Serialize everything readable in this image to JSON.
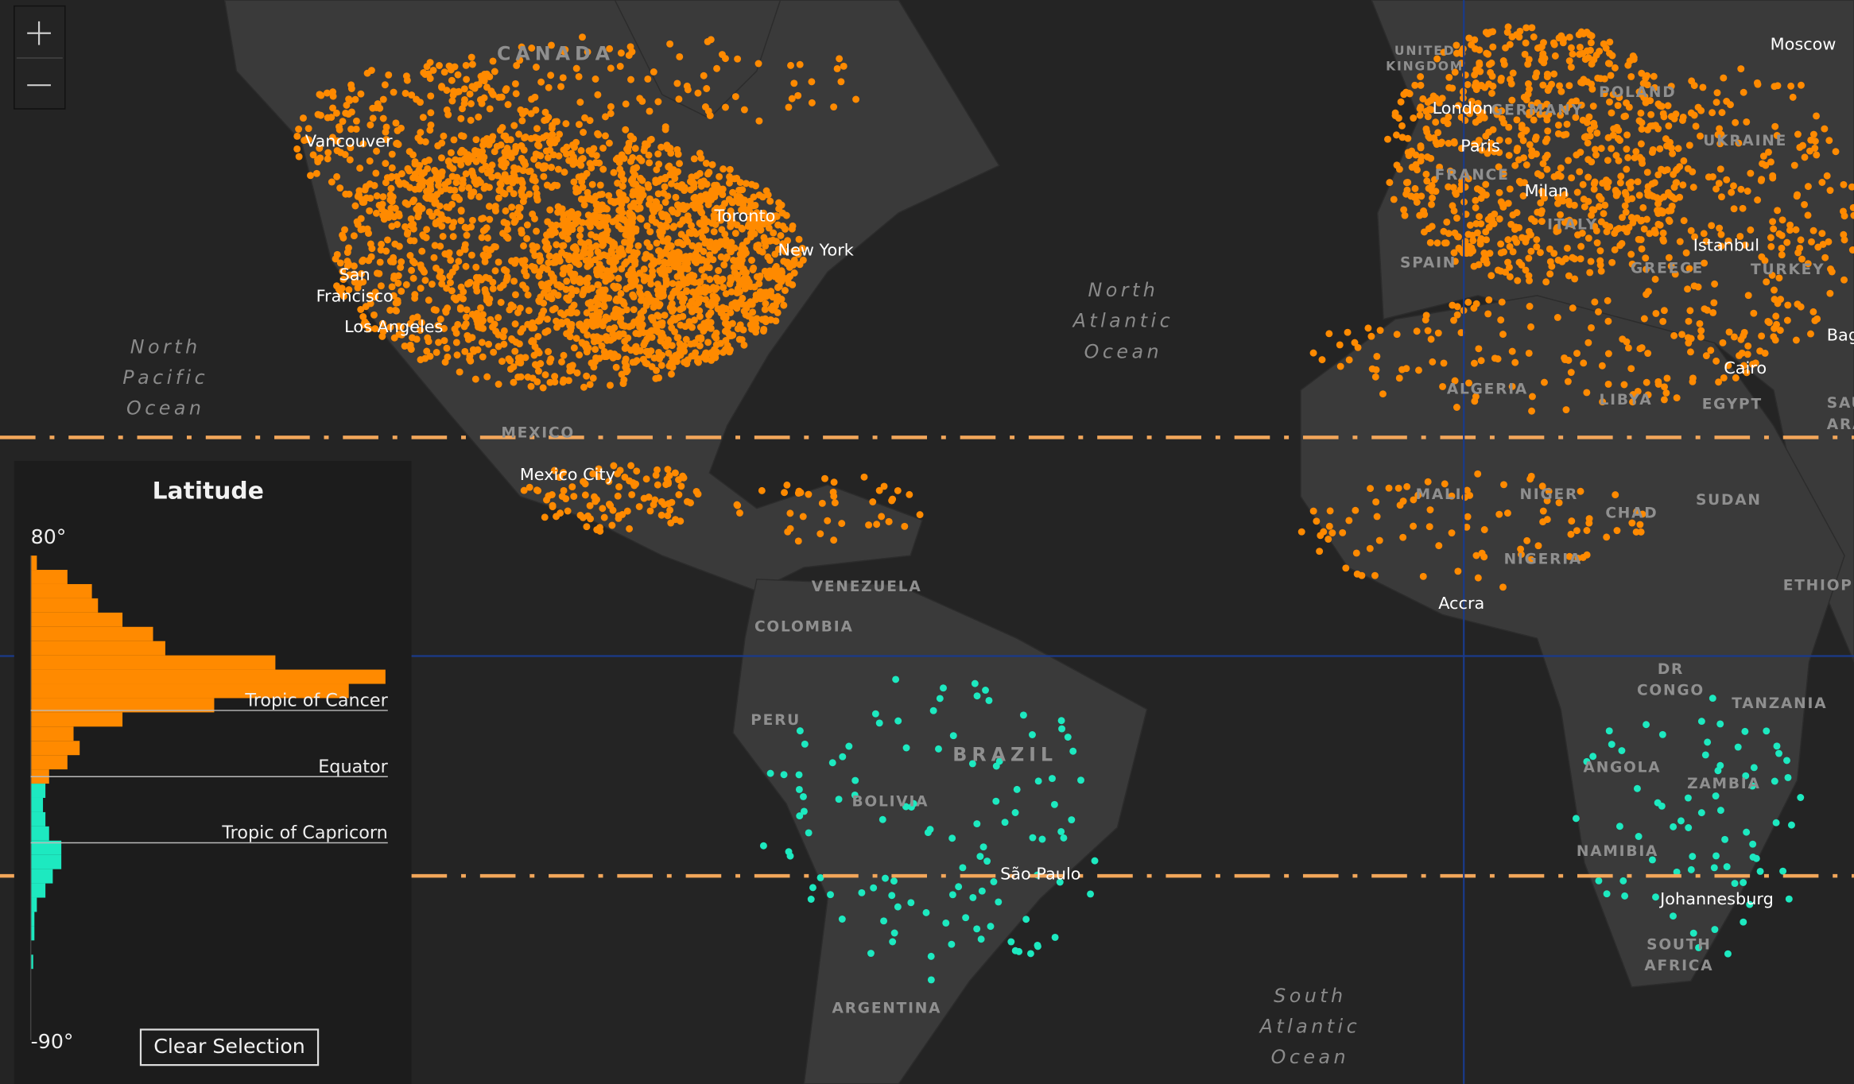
{
  "map_labels": [
    {
      "lines": [
        "CANADA"
      ],
      "kind": "country"
    },
    {
      "lines": [
        "Vancouver"
      ],
      "kind": "city"
    },
    {
      "lines": [
        "San",
        "Francisco"
      ],
      "kind": "city"
    },
    {
      "lines": [
        "Los Angeles"
      ],
      "kind": "city"
    },
    {
      "lines": [
        "Toronto"
      ],
      "kind": "city"
    },
    {
      "lines": [
        "New York"
      ],
      "kind": "city"
    },
    {
      "lines": [
        "MEXICO"
      ],
      "kind": "country"
    },
    {
      "lines": [
        "Mexico City"
      ],
      "kind": "city"
    },
    {
      "lines": [
        "North",
        "Pacific",
        "Ocean"
      ],
      "kind": "ocean"
    },
    {
      "lines": [
        "North",
        "Atlantic",
        "Ocean"
      ],
      "kind": "ocean"
    },
    {
      "lines": [
        "VENEZUELA"
      ],
      "kind": "country"
    },
    {
      "lines": [
        "COLOMBIA"
      ],
      "kind": "country"
    },
    {
      "lines": [
        "PERU"
      ],
      "kind": "country"
    },
    {
      "lines": [
        "BRAZIL"
      ],
      "kind": "country"
    },
    {
      "lines": [
        "BOLIVIA"
      ],
      "kind": "country"
    },
    {
      "lines": [
        "ARGENTINA"
      ],
      "kind": "country"
    },
    {
      "lines": [
        "São Paulo"
      ],
      "kind": "city"
    },
    {
      "lines": [
        "South",
        "Atlantic",
        "Ocean"
      ],
      "kind": "ocean"
    },
    {
      "lines": [
        "UNITED",
        "KINGDOM"
      ],
      "kind": "country"
    },
    {
      "lines": [
        "London"
      ],
      "kind": "city"
    },
    {
      "lines": [
        "Paris"
      ],
      "kind": "city"
    },
    {
      "lines": [
        "FRANCE"
      ],
      "kind": "country"
    },
    {
      "lines": [
        "GERMANY"
      ],
      "kind": "country"
    },
    {
      "lines": [
        "POLAND"
      ],
      "kind": "country"
    },
    {
      "lines": [
        "UKRAINE"
      ],
      "kind": "country"
    },
    {
      "lines": [
        "Moscow"
      ],
      "kind": "city"
    },
    {
      "lines": [
        "Milan"
      ],
      "kind": "city"
    },
    {
      "lines": [
        "ITALY"
      ],
      "kind": "country"
    },
    {
      "lines": [
        "SPAIN"
      ],
      "kind": "country"
    },
    {
      "lines": [
        "GREECE"
      ],
      "kind": "country"
    },
    {
      "lines": [
        "Istanbul"
      ],
      "kind": "city"
    },
    {
      "lines": [
        "TURKEY"
      ],
      "kind": "country"
    },
    {
      "lines": [
        "Baghdad"
      ],
      "kind": "city"
    },
    {
      "lines": [
        "ALGERIA"
      ],
      "kind": "country"
    },
    {
      "lines": [
        "LIBYA"
      ],
      "kind": "country"
    },
    {
      "lines": [
        "EGYPT"
      ],
      "kind": "country"
    },
    {
      "lines": [
        "Cairo"
      ],
      "kind": "city"
    },
    {
      "lines": [
        "SAUDI",
        "ARABIA"
      ],
      "kind": "country"
    },
    {
      "lines": [
        "MALI"
      ],
      "kind": "country"
    },
    {
      "lines": [
        "NIGER"
      ],
      "kind": "country"
    },
    {
      "lines": [
        "CHAD"
      ],
      "kind": "country"
    },
    {
      "lines": [
        "SUDAN"
      ],
      "kind": "country"
    },
    {
      "lines": [
        "NIGERIA"
      ],
      "kind": "country"
    },
    {
      "lines": [
        "ETHIOPIA"
      ],
      "kind": "country"
    },
    {
      "lines": [
        "Accra"
      ],
      "kind": "city"
    },
    {
      "lines": [
        "DR",
        "CONGO"
      ],
      "kind": "country"
    },
    {
      "lines": [
        "TANZANIA"
      ],
      "kind": "country"
    },
    {
      "lines": [
        "ANGOLA"
      ],
      "kind": "country"
    },
    {
      "lines": [
        "ZAMBIA"
      ],
      "kind": "country"
    },
    {
      "lines": [
        "NAMIBIA"
      ],
      "kind": "country"
    },
    {
      "lines": [
        "Johannesburg"
      ],
      "kind": "city"
    },
    {
      "lines": [
        "SOUTH",
        "AFRICA"
      ],
      "kind": "country"
    }
  ],
  "widget": {
    "title": "Latitude",
    "max_label": "80°",
    "min_label": "-90°",
    "reference_lines": [
      "Tropic of Cancer",
      "Equator",
      "Tropic of Capricorn"
    ],
    "button": "Clear Selection",
    "histogram": {
      "bins": [
        80,
        75,
        70,
        65,
        60,
        55,
        50,
        45,
        40,
        35,
        30,
        25,
        20,
        15,
        10,
        5,
        0,
        -5,
        -10,
        -15,
        -20,
        -25,
        -30,
        -35,
        -40,
        -45,
        -50,
        -55,
        -60,
        -65,
        -70,
        -75,
        -80,
        -85,
        -90
      ],
      "counts": [
        5,
        30,
        50,
        55,
        75,
        100,
        110,
        200,
        290,
        260,
        150,
        75,
        35,
        40,
        30,
        15,
        12,
        10,
        12,
        15,
        25,
        25,
        18,
        12,
        5,
        3,
        3,
        0,
        2,
        0,
        0,
        0,
        0,
        0
      ],
      "colors": [
        "#ff8a00",
        "#ff8a00",
        "#ff8a00",
        "#ff8a00",
        "#ff8a00",
        "#ff8a00",
        "#ff8a00",
        "#ff8a00",
        "#ff8a00",
        "#ff8a00",
        "#ff8a00",
        "#ff8a00",
        "#ff8a00",
        "#ff8a00",
        "#ff8a00",
        "#ff8a00",
        "#1de9c0",
        "#1de9c0",
        "#1de9c0",
        "#1de9c0",
        "#1de9c0",
        "#1de9c0",
        "#1de9c0",
        "#1de9c0",
        "#1de9c0",
        "#1de9c0",
        "#1de9c0",
        "#1de9c0",
        "#1de9c0",
        "#1de9c0",
        "#1de9c0",
        "#1de9c0",
        "#1de9c0",
        "#1de9c0"
      ]
    }
  }
}
